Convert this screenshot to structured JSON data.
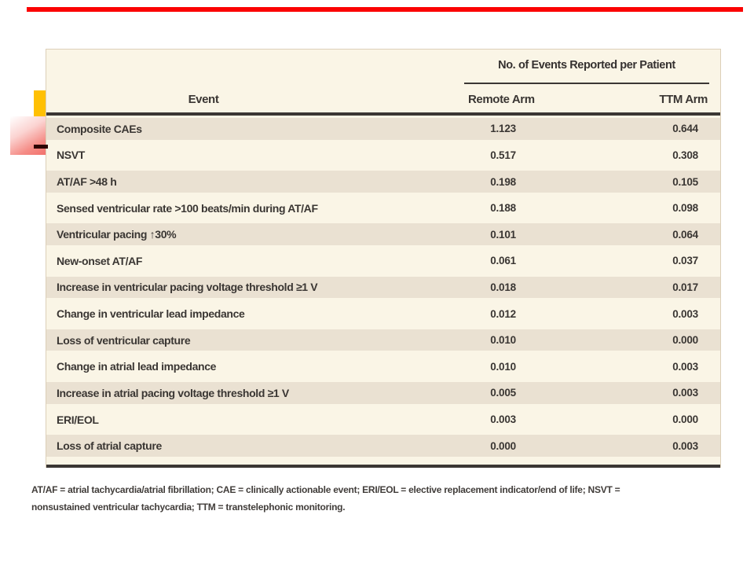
{
  "slide": {
    "background_color": "#ffffff",
    "accent_bar_color": "#fb0303",
    "yellow_square_color": "#ffc003",
    "pink_square_gradient": [
      "#ffffff",
      "#f2716c"
    ],
    "dark_dash_color": "#2e0502"
  },
  "table": {
    "span_header": "No. of Events Reported per Patient",
    "columns": {
      "event": "Event",
      "remote": "Remote Arm",
      "ttm": "TTM Arm"
    },
    "colors": {
      "cream_background": "#faf5e6",
      "tan_row_background": "#eae1d2",
      "rule_color": "#3b3734",
      "text_color": "#3a3633"
    },
    "rows": [
      {
        "event": "Composite CAEs",
        "remote": "1.123",
        "ttm": "0.644"
      },
      {
        "event": "NSVT",
        "remote": "0.517",
        "ttm": "0.308"
      },
      {
        "event": "AT/AF >48 h",
        "remote": "0.198",
        "ttm": "0.105"
      },
      {
        "event": "Sensed ventricular rate >100 beats/min during AT/AF",
        "remote": "0.188",
        "ttm": "0.098"
      },
      {
        "event": "Ventricular pacing ↑30%",
        "remote": "0.101",
        "ttm": "0.064"
      },
      {
        "event": "New-onset AT/AF",
        "remote": "0.061",
        "ttm": "0.037"
      },
      {
        "event": "Increase in ventricular pacing voltage threshold ≥1 V",
        "remote": "0.018",
        "ttm": "0.017"
      },
      {
        "event": "Change in ventricular lead impedance",
        "remote": "0.012",
        "ttm": "0.003"
      },
      {
        "event": "Loss of ventricular capture",
        "remote": "0.010",
        "ttm": "0.000"
      },
      {
        "event": "Change in atrial lead impedance",
        "remote": "0.010",
        "ttm": "0.003"
      },
      {
        "event": "Increase in atrial pacing voltage threshold ≥1 V",
        "remote": "0.005",
        "ttm": "0.003"
      },
      {
        "event": "ERI/EOL",
        "remote": "0.003",
        "ttm": "0.000"
      },
      {
        "event": "Loss of atrial capture",
        "remote": "0.000",
        "ttm": "0.003"
      }
    ]
  },
  "footnote": {
    "lines": [
      "AT/AF = atrial tachycardia/atrial fibrillation; CAE = clinically actionable event; ERI/EOL = elective replacement indicator/end of life; NSVT =",
      "nonsustained ventricular tachycardia; TTM = transtelephonic monitoring."
    ]
  }
}
